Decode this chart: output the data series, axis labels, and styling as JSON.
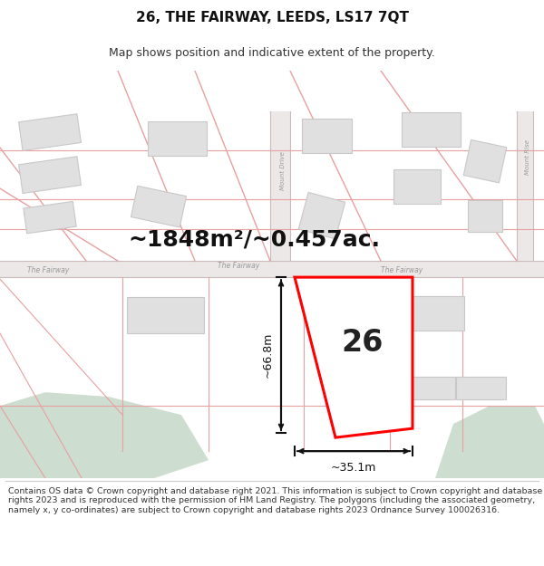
{
  "title": "26, THE FAIRWAY, LEEDS, LS17 7QT",
  "subtitle": "Map shows position and indicative extent of the property.",
  "area_text": "~1848m²/~0.457ac.",
  "property_number": "26",
  "dim_width": "~35.1m",
  "dim_height": "~66.8m",
  "bg_map_color": "#f5efef",
  "bg_green_color": "#cdddd0",
  "property_fill": "#ffffff",
  "property_edge": "#ff0000",
  "footer_text": "Contains OS data © Crown copyright and database right 2021. This information is subject to Crown copyright and database rights 2023 and is reproduced with the permission of HM Land Registry. The polygons (including the associated geometry, namely x, y co-ordinates) are subject to Crown copyright and database rights 2023 Ordnance Survey 100026316.",
  "red_line_color": "#e8a0a0",
  "bldg_fill": "#e0e0e0",
  "bldg_edge": "#c8c8c8",
  "road_fill": "#eeeeee",
  "road_label_color": "#999999",
  "title_fontsize": 11,
  "subtitle_fontsize": 9,
  "area_fontsize": 18,
  "number_fontsize": 24,
  "footer_fontsize": 6.8
}
